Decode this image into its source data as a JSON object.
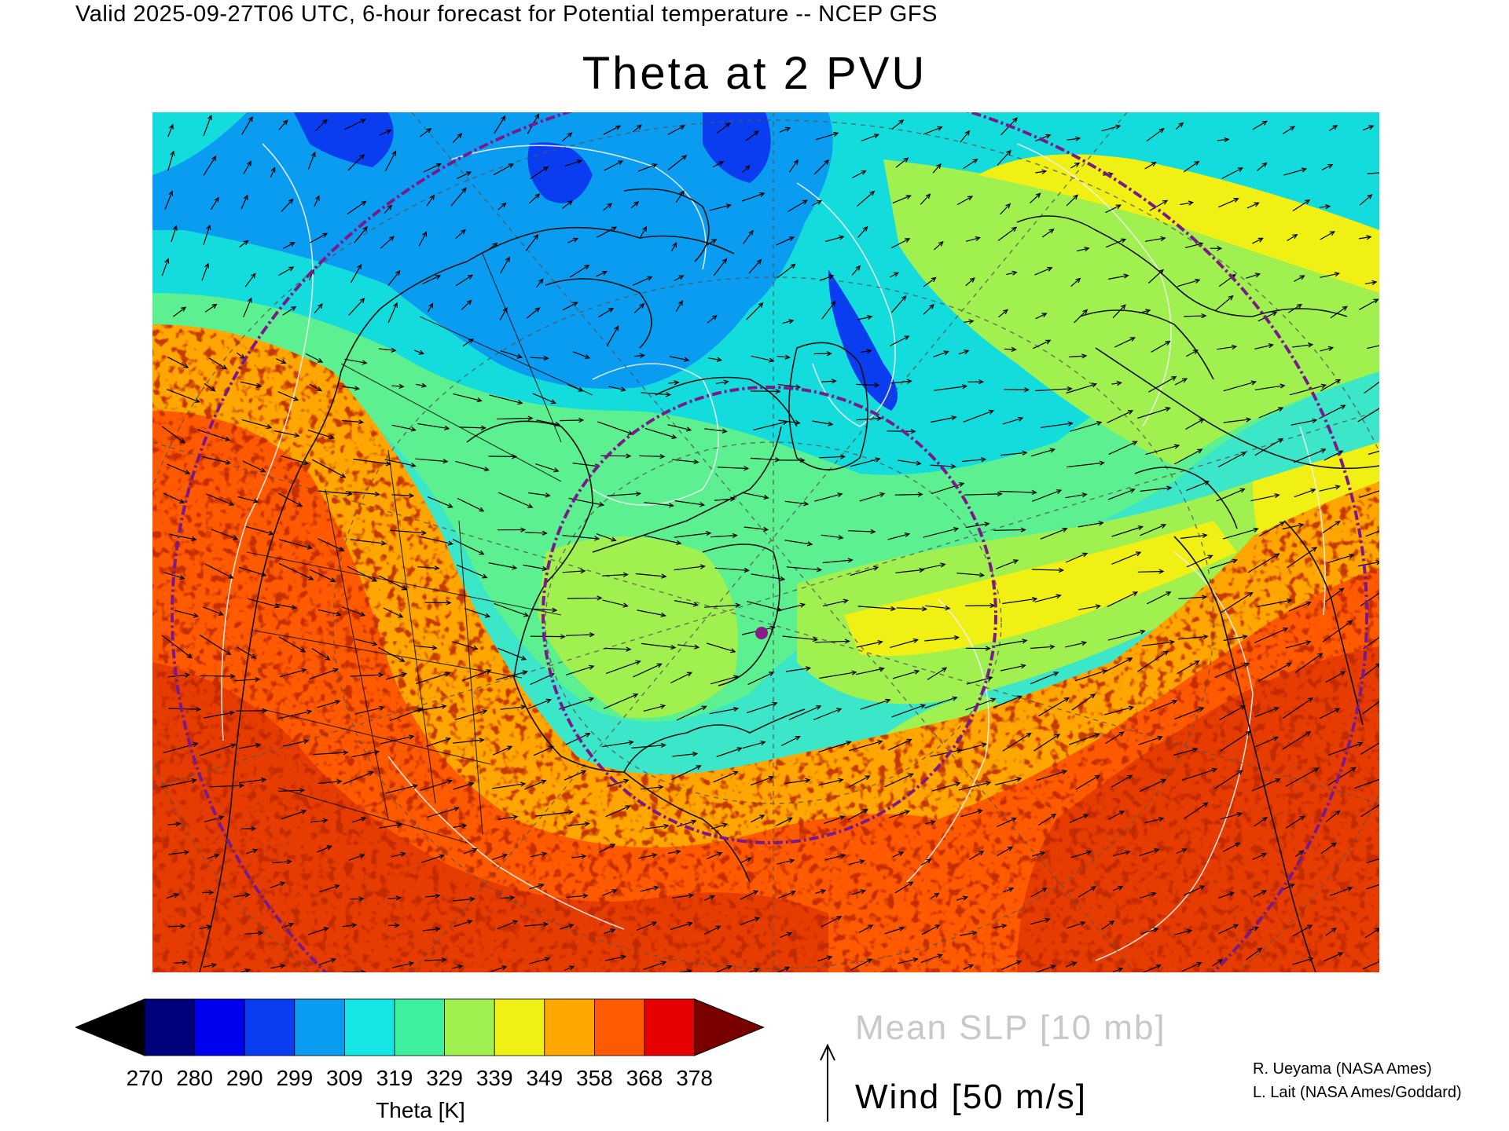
{
  "header": {
    "valid_line": "Valid 2025-09-27T06 UTC, 6-hour forecast for Potential temperature -- NCEP GFS",
    "title": "Theta at 2 PVU"
  },
  "map": {
    "field": "Theta",
    "projection_marker": "purple dot near Labrador Sea",
    "contours": "Mean SLP (white)",
    "vectors": "Wind"
  },
  "colorbar": {
    "title": "Theta [K]",
    "ticks": [
      "270",
      "280",
      "290",
      "299",
      "309",
      "319",
      "329",
      "339",
      "349",
      "358",
      "368",
      "378"
    ],
    "colors": [
      "#000000",
      "#00007a",
      "#0000f0",
      "#0a3cf0",
      "#0a9cf0",
      "#14e6e6",
      "#3cf0a0",
      "#a0f050",
      "#f0f014",
      "#ffa600",
      "#ff5a00",
      "#e60000",
      "#7a0000"
    ]
  },
  "legend": {
    "slp": "Mean SLP [10 mb]",
    "wind": "Wind [50 m/s]"
  },
  "credits": {
    "line1": "R. Ueyama (NASA Ames)",
    "line2": "L. Lait (NASA Ames/Goddard)"
  }
}
